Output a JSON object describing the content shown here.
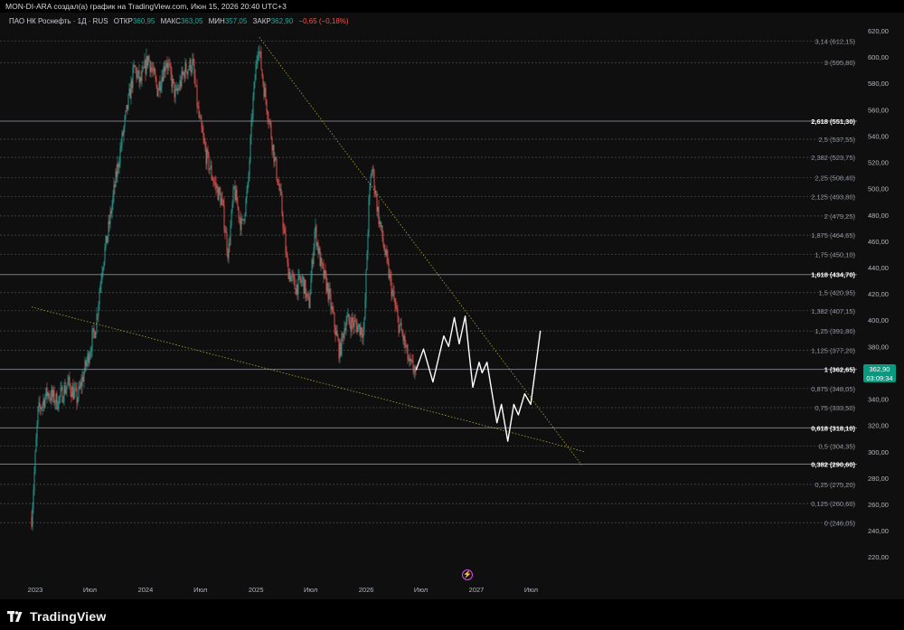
{
  "header": {
    "caption": "MON-DI-ARA создал(а) график на TradingView.com, Июн 15, 2026 20:40 UTC+3"
  },
  "legend": {
    "symbol": "ПАО НК Роснефть · 1Д · RUS",
    "open_label": "ОТКР",
    "open_value": "360,95",
    "high_label": "МАКС",
    "high_value": "363,05",
    "low_label": "МИН",
    "low_value": "357,05",
    "close_label": "ЗАКР",
    "close_value": "362,90",
    "change": "−0,65 (−0,18%)"
  },
  "price_badge": {
    "price": "362,90",
    "timer": "03:09:34"
  },
  "footer": {
    "brand": "TradingView"
  },
  "colors": {
    "background": "#0f0f0f",
    "bull": "#26a69a",
    "bear": "#ef5350",
    "fib_line": "#5d606b",
    "trendline": "#c7c13e",
    "projection": "#ffffff"
  },
  "chart_data": {
    "type": "candlestick",
    "yaxis_ticks": [
      "620,00",
      "600,00",
      "580,00",
      "560,00",
      "540,00",
      "520,00",
      "500,00",
      "480,00",
      "460,00",
      "440,00",
      "420,00",
      "400,00",
      "380,00",
      "360,00",
      "340,00",
      "320,00",
      "300,00",
      "280,00",
      "260,00",
      "240,00",
      "220,00"
    ],
    "yaxis_values": [
      620,
      600,
      580,
      560,
      540,
      520,
      500,
      480,
      460,
      440,
      420,
      400,
      380,
      360,
      340,
      320,
      300,
      280,
      260,
      240,
      220
    ],
    "xaxis_ticks": [
      {
        "label": "2023",
        "date": "2023-01-01"
      },
      {
        "label": "Июл",
        "date": "2023-07-01"
      },
      {
        "label": "2024",
        "date": "2024-01-01"
      },
      {
        "label": "Июл",
        "date": "2024-07-01"
      },
      {
        "label": "2025",
        "date": "2025-01-01"
      },
      {
        "label": "Июл",
        "date": "2025-07-01"
      },
      {
        "label": "2026",
        "date": "2026-01-01"
      },
      {
        "label": "Июл",
        "date": "2026-07-01"
      },
      {
        "label": "2027",
        "date": "2027-01-01"
      },
      {
        "label": "Июл",
        "date": "2027-07-01"
      }
    ],
    "fib_levels": [
      {
        "ratio": "3,14",
        "price": 612.15,
        "label": "3,14 (612,15)",
        "bold": false
      },
      {
        "ratio": "3",
        "price": 595.8,
        "label": "3 (595,80)",
        "bold": false
      },
      {
        "ratio": "2,618",
        "price": 551.3,
        "label": "2,618 (551,30)",
        "bold": true
      },
      {
        "ratio": "2,5",
        "price": 537.55,
        "label": "2,5 (537,55)",
        "bold": false
      },
      {
        "ratio": "2,382",
        "price": 523.75,
        "label": "2,382 (523,75)",
        "bold": false
      },
      {
        "ratio": "2,25",
        "price": 508.4,
        "label": "2,25 (508,40)",
        "bold": false
      },
      {
        "ratio": "2,125",
        "price": 493.8,
        "label": "2,125 (493,80)",
        "bold": false
      },
      {
        "ratio": "2",
        "price": 479.25,
        "label": "2 (479,25)",
        "bold": false
      },
      {
        "ratio": "1,875",
        "price": 464.65,
        "label": "1,875 (464,65)",
        "bold": false
      },
      {
        "ratio": "1,75",
        "price": 450.1,
        "label": "1,75 (450,10)",
        "bold": false
      },
      {
        "ratio": "1,618",
        "price": 434.7,
        "label": "1,618 (434,70)",
        "bold": true
      },
      {
        "ratio": "1,5",
        "price": 420.95,
        "label": "1,5 (420,95)",
        "bold": false
      },
      {
        "ratio": "1,382",
        "price": 407.15,
        "label": "1,382 (407,15)",
        "bold": false
      },
      {
        "ratio": "1,25",
        "price": 391.8,
        "label": "1,25 (391,80)",
        "bold": false
      },
      {
        "ratio": "1,125",
        "price": 377.2,
        "label": "1,125 (377,20)",
        "bold": false
      },
      {
        "ratio": "1",
        "price": 362.65,
        "label": "1 (362,65)",
        "bold": true
      },
      {
        "ratio": "0,875",
        "price": 348.05,
        "label": "0,875 (348,05)",
        "bold": false
      },
      {
        "ratio": "0,75",
        "price": 333.5,
        "label": "0,75 (333,50)",
        "bold": false
      },
      {
        "ratio": "0,618",
        "price": 318.1,
        "label": "0,618 (318,10)",
        "bold": true
      },
      {
        "ratio": "0,5",
        "price": 304.35,
        "label": "0,5 (304,35)",
        "bold": false
      },
      {
        "ratio": "0,382",
        "price": 290.6,
        "label": "0,382 (290,60)",
        "bold": true
      },
      {
        "ratio": "0,25",
        "price": 275.2,
        "label": "0,25 (275,20)",
        "bold": false
      },
      {
        "ratio": "0,125",
        "price": 260.6,
        "label": "0,125 (260,60)",
        "bold": false
      },
      {
        "ratio": "0",
        "price": 246.05,
        "label": "0 (246,05)",
        "bold": false
      }
    ],
    "price_path": [
      {
        "date": "2022-12-20",
        "price": 250
      },
      {
        "date": "2023-01-10",
        "price": 330
      },
      {
        "date": "2023-02-10",
        "price": 345
      },
      {
        "date": "2023-03-15",
        "price": 338
      },
      {
        "date": "2023-04-20",
        "price": 352
      },
      {
        "date": "2023-05-20",
        "price": 340
      },
      {
        "date": "2023-06-20",
        "price": 368
      },
      {
        "date": "2023-07-20",
        "price": 395
      },
      {
        "date": "2023-08-10",
        "price": 440
      },
      {
        "date": "2023-09-01",
        "price": 470
      },
      {
        "date": "2023-09-20",
        "price": 500
      },
      {
        "date": "2023-10-10",
        "price": 530
      },
      {
        "date": "2023-11-01",
        "price": 560
      },
      {
        "date": "2023-11-25",
        "price": 592
      },
      {
        "date": "2023-12-15",
        "price": 580
      },
      {
        "date": "2024-01-10",
        "price": 600
      },
      {
        "date": "2024-02-10",
        "price": 575
      },
      {
        "date": "2024-03-10",
        "price": 598
      },
      {
        "date": "2024-04-10",
        "price": 570
      },
      {
        "date": "2024-05-10",
        "price": 590
      },
      {
        "date": "2024-06-05",
        "price": 595
      },
      {
        "date": "2024-06-25",
        "price": 555
      },
      {
        "date": "2024-07-20",
        "price": 525
      },
      {
        "date": "2024-08-15",
        "price": 505
      },
      {
        "date": "2024-09-10",
        "price": 490
      },
      {
        "date": "2024-10-01",
        "price": 450
      },
      {
        "date": "2024-10-20",
        "price": 500
      },
      {
        "date": "2024-11-15",
        "price": 470
      },
      {
        "date": "2024-12-05",
        "price": 500
      },
      {
        "date": "2024-12-20",
        "price": 560
      },
      {
        "date": "2025-01-08",
        "price": 612
      },
      {
        "date": "2025-01-25",
        "price": 580
      },
      {
        "date": "2025-02-15",
        "price": 550
      },
      {
        "date": "2025-03-05",
        "price": 520
      },
      {
        "date": "2025-03-25",
        "price": 490
      },
      {
        "date": "2025-04-15",
        "price": 440
      },
      {
        "date": "2025-05-10",
        "price": 425
      },
      {
        "date": "2025-06-05",
        "price": 430
      },
      {
        "date": "2025-06-25",
        "price": 410
      },
      {
        "date": "2025-07-15",
        "price": 470
      },
      {
        "date": "2025-08-05",
        "price": 440
      },
      {
        "date": "2025-08-25",
        "price": 425
      },
      {
        "date": "2025-09-15",
        "price": 400
      },
      {
        "date": "2025-10-05",
        "price": 375
      },
      {
        "date": "2025-10-25",
        "price": 400
      },
      {
        "date": "2025-11-15",
        "price": 398
      },
      {
        "date": "2025-12-05",
        "price": 395
      },
      {
        "date": "2025-12-25",
        "price": 392
      },
      {
        "date": "2026-01-10",
        "price": 490
      },
      {
        "date": "2026-01-20",
        "price": 518
      },
      {
        "date": "2026-02-10",
        "price": 480
      },
      {
        "date": "2026-03-05",
        "price": 450
      },
      {
        "date": "2026-03-25",
        "price": 425
      },
      {
        "date": "2026-04-15",
        "price": 400
      },
      {
        "date": "2026-05-05",
        "price": 385
      },
      {
        "date": "2026-05-25",
        "price": 365
      },
      {
        "date": "2026-06-15",
        "price": 362.9
      }
    ],
    "projection": [
      {
        "date": "2026-06-15",
        "price": 362
      },
      {
        "date": "2026-07-10",
        "price": 378
      },
      {
        "date": "2026-08-10",
        "price": 353
      },
      {
        "date": "2026-09-15",
        "price": 388
      },
      {
        "date": "2026-10-01",
        "price": 380
      },
      {
        "date": "2026-10-20",
        "price": 402
      },
      {
        "date": "2026-11-05",
        "price": 382
      },
      {
        "date": "2026-11-25",
        "price": 403
      },
      {
        "date": "2026-12-20",
        "price": 349
      },
      {
        "date": "2027-01-10",
        "price": 368
      },
      {
        "date": "2027-01-20",
        "price": 360
      },
      {
        "date": "2027-02-05",
        "price": 368
      },
      {
        "date": "2027-02-25",
        "price": 340
      },
      {
        "date": "2027-03-10",
        "price": 322
      },
      {
        "date": "2027-03-25",
        "price": 336
      },
      {
        "date": "2027-04-15",
        "price": 308
      },
      {
        "date": "2027-05-05",
        "price": 336
      },
      {
        "date": "2027-05-20",
        "price": 328
      },
      {
        "date": "2027-06-10",
        "price": 344
      },
      {
        "date": "2027-06-30",
        "price": 336
      },
      {
        "date": "2027-08-01",
        "price": 392
      }
    ],
    "trendlines": [
      {
        "name": "descending",
        "from": {
          "date": "2025-01-12",
          "price": 615
        },
        "to": {
          "date": "2027-12-15",
          "price": 290
        }
      },
      {
        "name": "support",
        "from": {
          "date": "2022-12-20",
          "price": 410
        },
        "to": {
          "date": "2027-12-25",
          "price": 300
        }
      }
    ]
  }
}
